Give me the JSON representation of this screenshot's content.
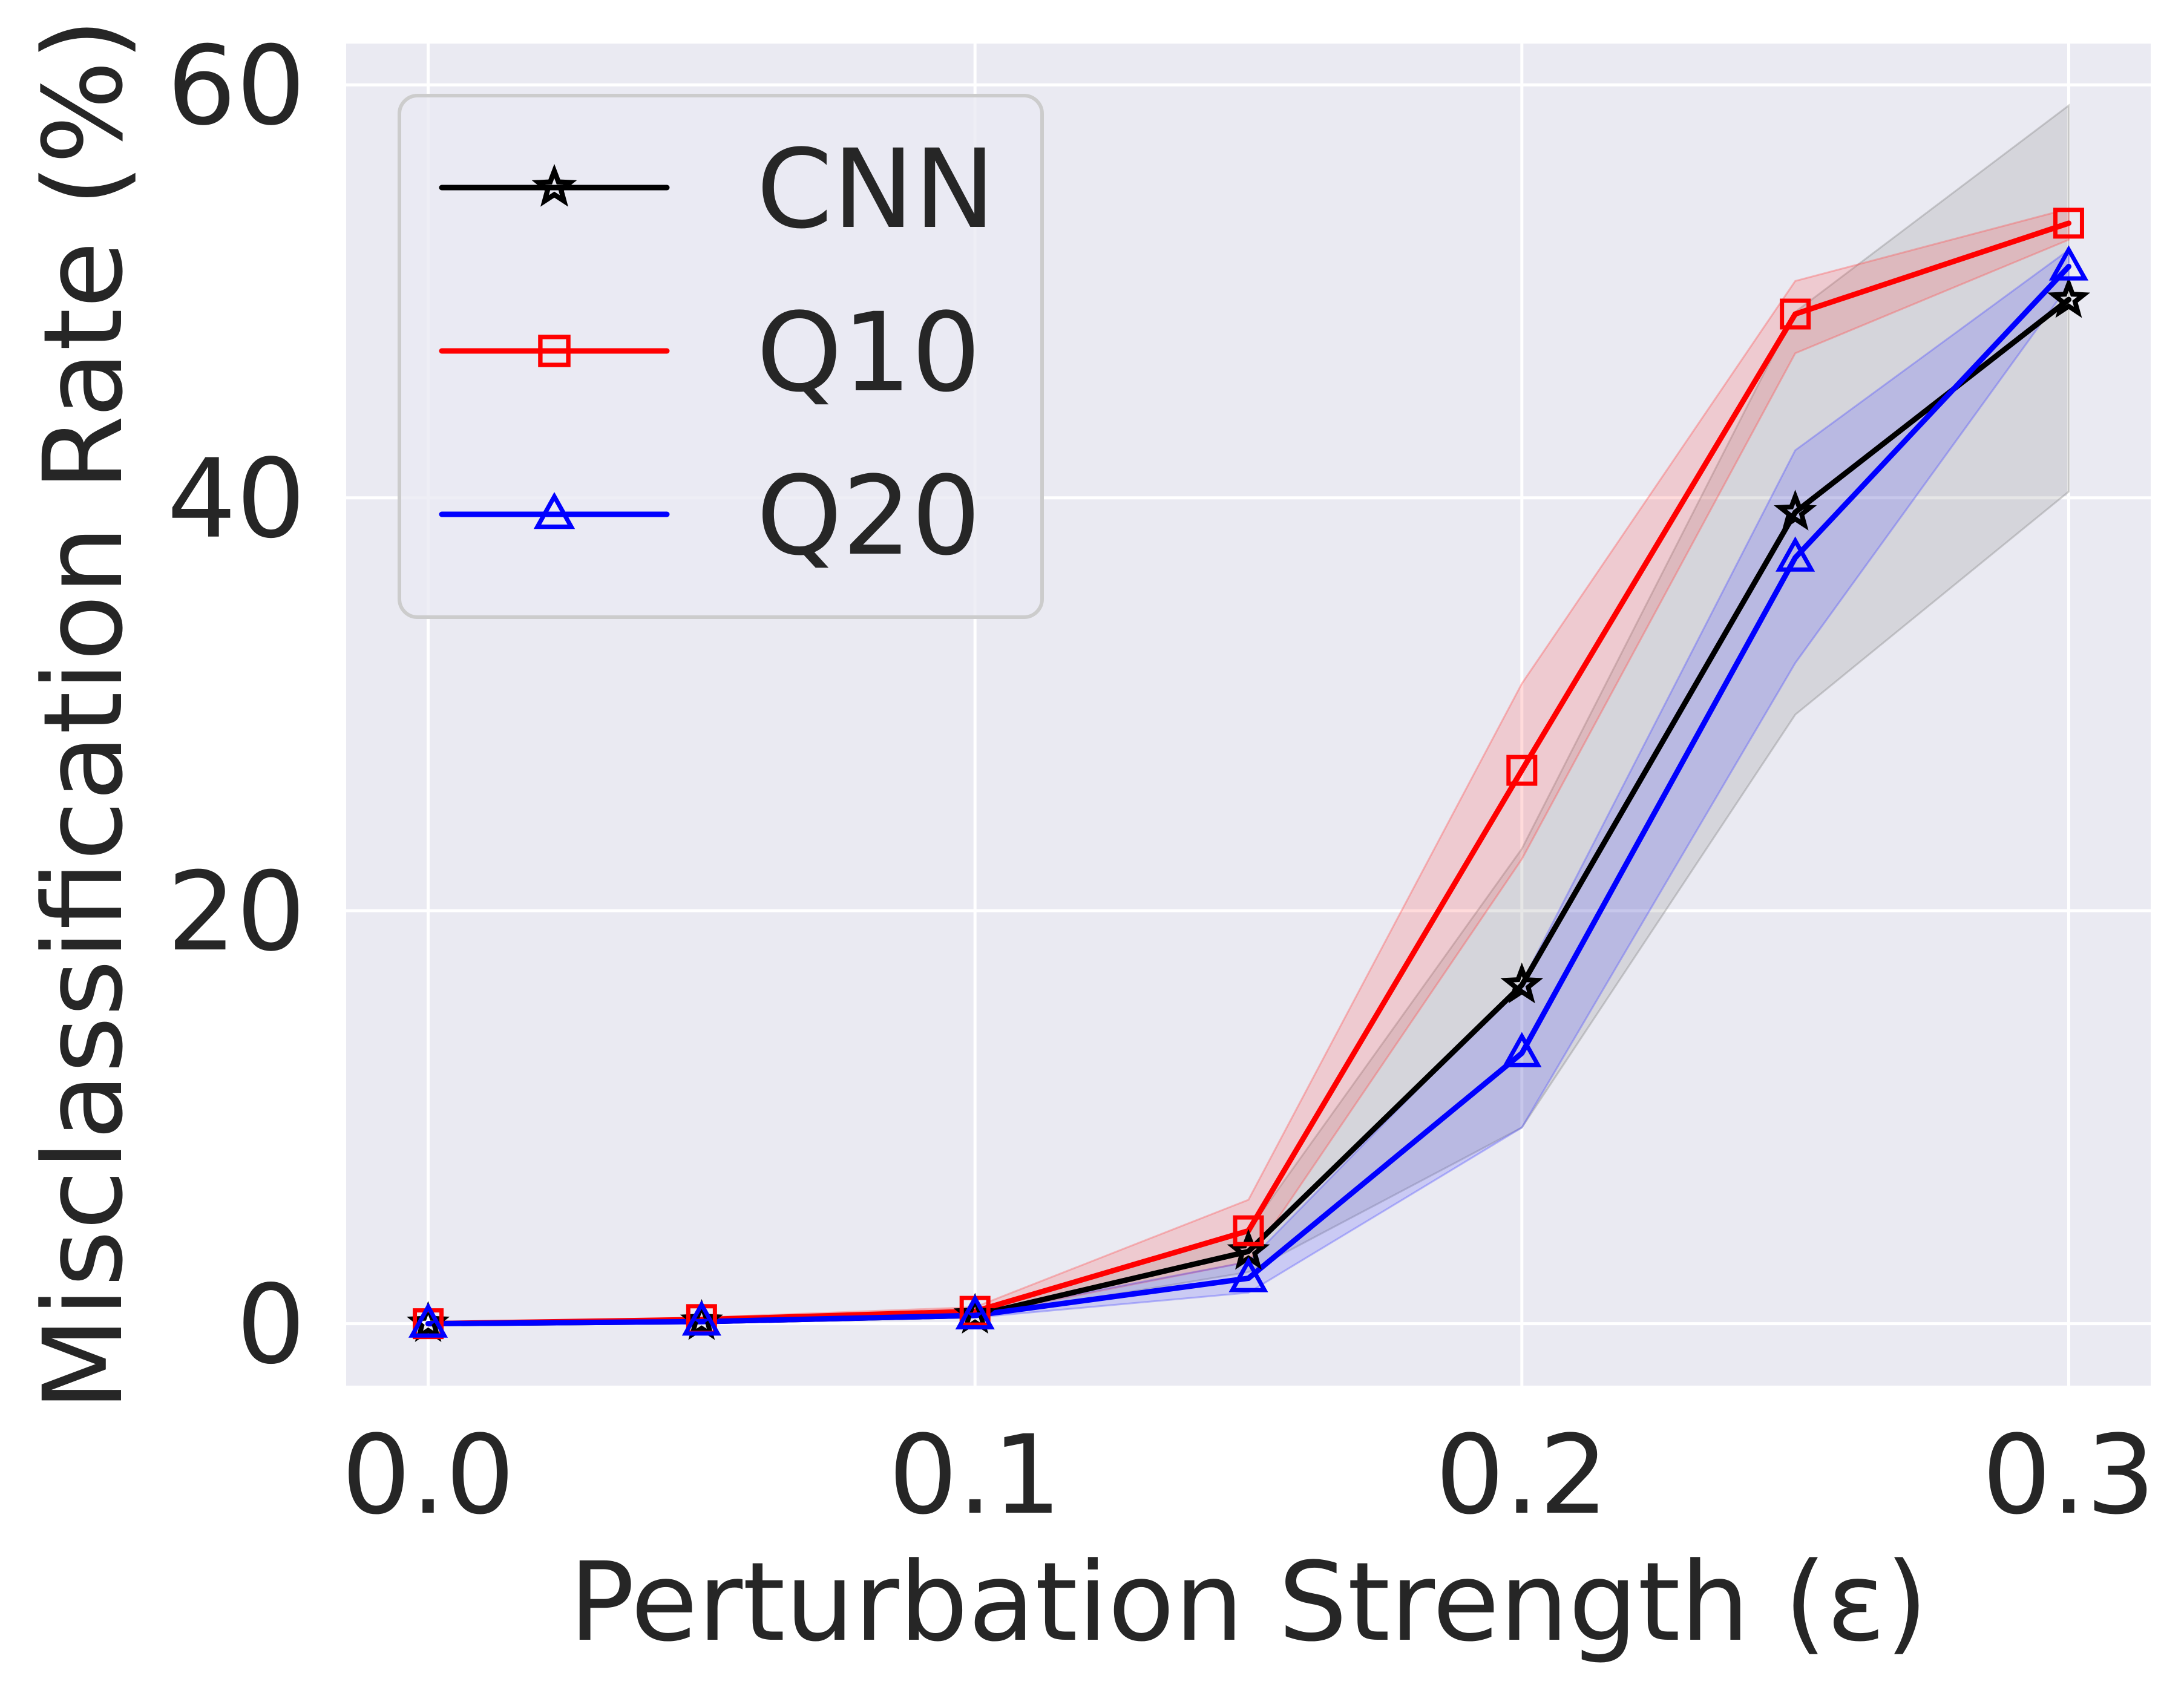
{
  "chart_data": {
    "type": "line",
    "title": "",
    "xlabel": "Perturbation Strength (ε)",
    "ylabel": "Misclassification Rate (%)",
    "xlim": [
      -0.015,
      0.315
    ],
    "ylim": [
      -3,
      62
    ],
    "xticks": [
      0.0,
      0.1,
      0.2,
      0.3
    ],
    "xtick_labels": [
      "0.0",
      "0.1",
      "0.2",
      "0.3"
    ],
    "yticks": [
      0,
      20,
      40,
      60
    ],
    "ytick_labels": [
      "0",
      "20",
      "40",
      "60"
    ],
    "grid": true,
    "legend_position": "top-left",
    "x": [
      0.0,
      0.05,
      0.1,
      0.15,
      0.2,
      0.25,
      0.3
    ],
    "series": [
      {
        "name": "CNN",
        "color": "#000000",
        "marker": "star",
        "values": [
          0.0,
          0.1,
          0.4,
          3.5,
          16.4,
          39.3,
          49.6
        ],
        "lower": [
          0.0,
          0.05,
          0.3,
          2.5,
          9.5,
          29.5,
          40.3
        ],
        "upper": [
          0.0,
          0.15,
          0.5,
          4.5,
          23.0,
          49.0,
          59.0
        ],
        "band_color": "#808080"
      },
      {
        "name": "Q10",
        "color": "#ff0000",
        "marker": "square",
        "values": [
          0.0,
          0.2,
          0.6,
          4.5,
          26.8,
          48.9,
          53.3
        ],
        "lower": [
          0.0,
          0.1,
          0.4,
          3.0,
          22.5,
          47.0,
          52.5
        ],
        "upper": [
          0.0,
          0.3,
          0.8,
          6.0,
          31.0,
          50.5,
          54.0
        ],
        "band_color": "#ff4d4d"
      },
      {
        "name": "Q20",
        "color": "#0000ff",
        "marker": "triangle",
        "values": [
          0.0,
          0.1,
          0.4,
          2.2,
          13.1,
          37.1,
          51.2
        ],
        "lower": [
          0.0,
          0.05,
          0.3,
          1.5,
          9.5,
          32.0,
          50.3
        ],
        "upper": [
          0.0,
          0.15,
          0.5,
          3.0,
          16.5,
          42.3,
          52.0
        ],
        "band_color": "#4d4dff"
      }
    ]
  },
  "colors": {
    "plot_background": "#eaeaf2",
    "grid": "#ffffff",
    "text": "#262626",
    "legend_face": "#eaeaf2",
    "legend_edge": "#cccccc"
  }
}
